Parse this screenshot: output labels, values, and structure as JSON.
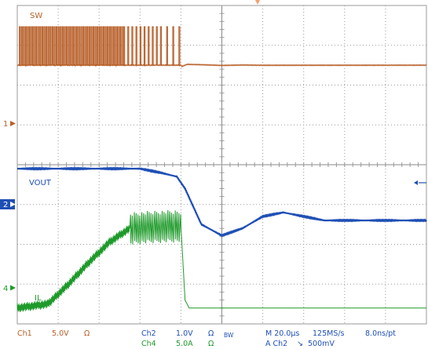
{
  "chart_data": {
    "type": "line",
    "title": "",
    "grid": true,
    "divisions": {
      "x": 10,
      "y": 8
    },
    "xlim": [
      -100,
      100
    ],
    "x_unit": "µs",
    "series": [
      {
        "name": "SW",
        "channel": "Ch1",
        "color": "#b8602a",
        "marker": "1",
        "offset_div": -2.5,
        "scale": "5.0V",
        "description_points": [
          [
            -100,
            0
          ],
          [
            -20,
            0
          ],
          [
            -19.5,
            -0.15
          ],
          [
            -17,
            0.1
          ],
          [
            -10,
            0.06
          ],
          [
            0,
            -0.03
          ],
          [
            10,
            0.02
          ],
          [
            20,
            -0.01
          ],
          [
            100,
            0
          ]
        ]
      },
      {
        "name": "VOUT",
        "channel": "Ch2",
        "color": "#1f4fb5",
        "marker": "2",
        "offset_div": 1.1,
        "scale": "1.0V",
        "points": [
          [
            -100,
            1.0
          ],
          [
            -40,
            1.0
          ],
          [
            -30,
            0.9
          ],
          [
            -22,
            0.8
          ],
          [
            -18,
            0.5
          ],
          [
            -10,
            -0.4
          ],
          [
            0,
            -0.68
          ],
          [
            10,
            -0.5
          ],
          [
            20,
            -0.2
          ],
          [
            30,
            -0.1
          ],
          [
            40,
            -0.2
          ],
          [
            50,
            -0.3
          ],
          [
            100,
            -0.3
          ]
        ]
      },
      {
        "name": "IL",
        "channel": "Ch4",
        "color": "#1e9a2a",
        "marker": "4",
        "offset_div": 3.6,
        "scale": "5.0A",
        "points": [
          [
            -100,
            0
          ],
          [
            -92,
            0.05
          ],
          [
            -85,
            0.1
          ],
          [
            -75,
            0.6
          ],
          [
            -65,
            1.15
          ],
          [
            -55,
            1.65
          ],
          [
            -45,
            2.0
          ],
          [
            -30,
            2.05
          ],
          [
            -25,
            2.05
          ],
          [
            -20,
            2.05
          ],
          [
            -18,
            0.2
          ],
          [
            -16,
            0
          ],
          [
            100,
            0
          ]
        ]
      }
    ],
    "sw_pulse_times": [
      -99,
      -98,
      -97,
      -96,
      -95,
      -94,
      -93,
      -92,
      -91,
      -90,
      -89,
      -88,
      -87,
      -86,
      -85,
      -84,
      -83,
      -82,
      -81,
      -80,
      -79,
      -78,
      -77,
      -76,
      -75,
      -74,
      -73,
      -72,
      -71,
      -70,
      -69,
      -68,
      -67,
      -66,
      -65,
      -64,
      -63,
      -62,
      -61,
      -60,
      -59,
      -58,
      -57,
      -56,
      -55,
      -54,
      -53,
      -52,
      -51,
      -50,
      -49,
      -48,
      -46,
      -44,
      -42,
      -40,
      -38,
      -36,
      -34,
      -32,
      -30,
      -27,
      -24,
      -21
    ]
  },
  "labels": {
    "sw": "SW",
    "vout": "VOUT",
    "il": "IL",
    "marker_1": "1",
    "marker_2": "2",
    "marker_4": "4"
  },
  "status_bar": {
    "ch1": "Ch1",
    "ch1_scale": "5.0V",
    "ch1_coupling": "Ω",
    "ch2": "Ch2",
    "ch2_scale": "1.0V",
    "ch2_coupling": "Ω",
    "ch4": "Ch4",
    "ch4_scale": "5.0A",
    "ch4_coupling": "Ω",
    "bw": "BW",
    "time_div": "M 20.0µs",
    "sample_rate": "125MS/s",
    "resolution": "8.0ns/pt",
    "trigger": "A  Ch2",
    "trigger_slope": "↘",
    "trigger_level": "500mV"
  },
  "colors": {
    "grid": "#9a9a9a",
    "grid_center": "#8a8a8a",
    "trigger_marker": "#f5a070",
    "status_text": "#b8602a"
  }
}
